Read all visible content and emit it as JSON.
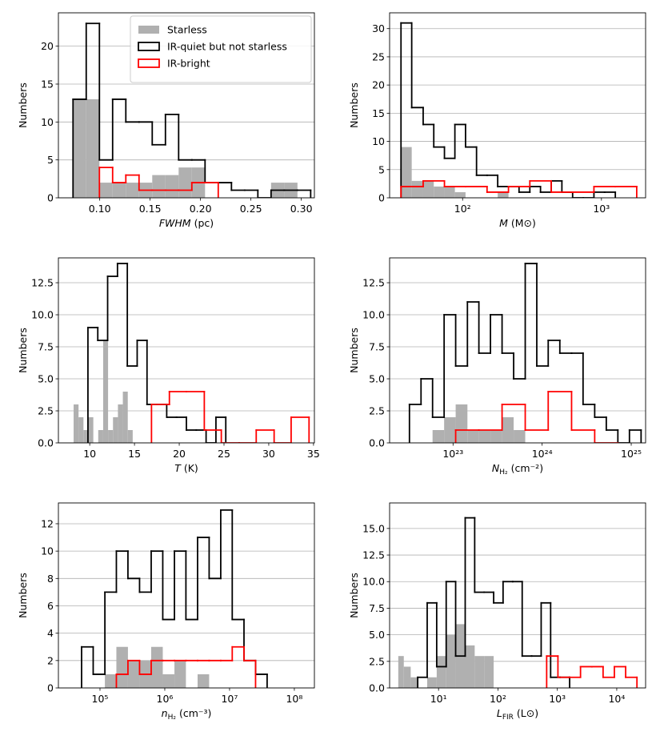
{
  "chart_data": [
    {
      "type": "histogram",
      "xscale": "linear",
      "grid": "y",
      "legend": "upper right",
      "xlabel": {
        "symbol": "FWHM",
        "unit": "(pc)"
      },
      "ylabel": "Numbers",
      "xlim": [
        0.059,
        0.313
      ],
      "ylim": [
        0,
        24.4
      ],
      "xticks": [
        {
          "value": 0.1,
          "label": "0.10"
        },
        0.15,
        {
          "value": 0.2,
          "label": "0.20"
        },
        0.25,
        {
          "value": 0.3,
          "label": "0.30"
        }
      ],
      "yticks": [
        0,
        5,
        10,
        15,
        20
      ],
      "series": [
        {
          "name": "Starless",
          "color": "#b0b0b0",
          "fill": true,
          "bins": [
            0.0735,
            0.0866,
            0.0997,
            0.1128,
            0.1259,
            0.139,
            0.1521,
            0.1652,
            0.1783,
            0.1914,
            0.2045,
            0.2176,
            0.2307,
            0.2438,
            0.2569,
            0.27,
            0.2831,
            0.2962,
            0.3093
          ],
          "values": [
            13,
            13,
            2,
            2,
            2,
            2,
            3,
            3,
            4,
            4,
            0,
            0,
            0,
            0,
            0,
            2,
            2,
            0
          ]
        },
        {
          "name": "IR-quiet but not starless",
          "color": "#000000",
          "fill": false,
          "bins": [
            0.0735,
            0.0866,
            0.0997,
            0.1128,
            0.1259,
            0.139,
            0.1521,
            0.1652,
            0.1783,
            0.1914,
            0.2045,
            0.2176,
            0.2307,
            0.2438,
            0.2569,
            0.27,
            0.2831,
            0.2962,
            0.3093
          ],
          "values": [
            13,
            23,
            5,
            13,
            10,
            10,
            7,
            11,
            5,
            5,
            2,
            2,
            1,
            1,
            0,
            1,
            1,
            1
          ]
        },
        {
          "name": "IR-bright",
          "color": "#ff0000",
          "fill": false,
          "bins": [
            0.0997,
            0.1128,
            0.1259,
            0.139,
            0.1521,
            0.1652,
            0.1783,
            0.1914,
            0.2045,
            0.2176
          ],
          "values": [
            4,
            2,
            3,
            1,
            1,
            1,
            1,
            2,
            2
          ]
        }
      ]
    },
    {
      "type": "histogram",
      "xscale": "log",
      "grid": "y",
      "xlabel": {
        "symbol": "M",
        "unit": "(M⊙)"
      },
      "ylabel": "Numbers",
      "xlim": [
        29.8,
        2080
      ],
      "ylim": [
        0,
        32.8
      ],
      "xticks": [
        {
          "value": 100,
          "label": "10²"
        },
        {
          "value": 1000,
          "label": "10³"
        }
      ],
      "yticks": [
        0,
        5,
        10,
        15,
        20,
        25,
        30
      ],
      "series": [
        {
          "color": "#b0b0b0",
          "fill": true,
          "bins": [
            36,
            43,
            52,
            62,
            74,
            88,
            105,
            126,
            150,
            179,
            214
          ],
          "values": [
            9,
            3,
            3,
            2,
            2,
            1,
            0,
            0,
            0,
            1
          ]
        },
        {
          "color": "#000000",
          "fill": false,
          "bins": [
            36,
            43,
            52,
            62,
            74,
            88,
            105,
            126,
            150,
            179,
            214,
            255,
            305,
            364,
            435,
            519,
            620,
            740,
            883,
            1054,
            1259
          ],
          "values": [
            31,
            16,
            13,
            9,
            7,
            13,
            9,
            4,
            4,
            2,
            2,
            1,
            2,
            1,
            3,
            1,
            0,
            0,
            1,
            1
          ]
        },
        {
          "color": "#ff0000",
          "fill": false,
          "bins": [
            36,
            52,
            74,
            105,
            150,
            214,
            305,
            435,
            620,
            883,
            1259,
            1795
          ],
          "values": [
            2,
            3,
            2,
            2,
            1,
            2,
            3,
            1,
            1,
            2,
            2
          ]
        }
      ]
    },
    {
      "type": "histogram",
      "xscale": "linear",
      "grid": "y",
      "xlabel": {
        "symbol": "T",
        "unit": "(K)"
      },
      "ylabel": "Numbers",
      "xlim": [
        6.5,
        35.1
      ],
      "ylim": [
        0,
        14.44
      ],
      "xticks": [
        10,
        15,
        20,
        25,
        30,
        35
      ],
      "yticks": [
        {
          "value": 0,
          "label": "0.0"
        },
        2.5,
        {
          "value": 5,
          "label": "5.0"
        },
        7.5,
        {
          "value": 10,
          "label": "10.0"
        },
        12.5
      ],
      "series": [
        {
          "color": "#b0b0b0",
          "fill": true,
          "bins": [
            8.2,
            8.75,
            9.3,
            9.85,
            10.4,
            10.95,
            11.5,
            12.05,
            12.6,
            13.15,
            13.7,
            14.25,
            14.8
          ],
          "values": [
            3,
            2,
            1,
            2,
            0,
            1,
            8,
            1,
            2,
            3,
            4,
            1
          ]
        },
        {
          "color": "#000000",
          "fill": false,
          "bins": [
            9.8,
            10.9,
            12.0,
            13.1,
            14.2,
            15.3,
            16.4,
            17.5,
            18.6,
            19.7,
            20.8,
            21.9,
            23.0,
            24.1,
            25.2
          ],
          "values": [
            9,
            8,
            13,
            14,
            6,
            8,
            3,
            3,
            2,
            2,
            1,
            1,
            0,
            2
          ]
        },
        {
          "color": "#ff0000",
          "fill": false,
          "bins": [
            16.9,
            18.9,
            20.8,
            22.8,
            24.7,
            26.7,
            28.6,
            30.6,
            32.5,
            34.5
          ],
          "values": [
            3,
            4,
            4,
            1,
            0,
            0,
            1,
            0,
            2
          ]
        }
      ]
    },
    {
      "type": "histogram",
      "xscale": "log",
      "grid": "y",
      "xlabel": {
        "symbol": "N",
        "subscript": "H₂",
        "unit": "(cm⁻²)"
      },
      "ylabel": "Numbers",
      "xlim": [
        1.94e+22,
        1.45e+25
      ],
      "ylim": [
        0,
        14.44
      ],
      "xticks": [
        {
          "value": 1e+23,
          "label": "10²³"
        },
        {
          "value": 1e+24,
          "label": "10²⁴"
        },
        {
          "value": 1e+25,
          "label": "10²⁵"
        }
      ],
      "yticks": [
        {
          "value": 0,
          "label": "0.0"
        },
        2.5,
        {
          "value": 5,
          "label": "5.0"
        },
        7.5,
        {
          "value": 10,
          "label": "10.0"
        },
        12.5
      ],
      "series": [
        {
          "color": "#b0b0b0",
          "fill": true,
          "bins": [
            5.89e+22,
            7.94e+22,
            1.07e+23,
            1.45e+23,
            1.95e+23,
            2.63e+23,
            3.55e+23,
            4.79e+23,
            6.46e+23
          ],
          "values": [
            1,
            2,
            3,
            1,
            1,
            1,
            2,
            1
          ]
        },
        {
          "color": "#000000",
          "fill": false,
          "bins": [
            3.24e+22,
            4.37e+22,
            5.89e+22,
            7.94e+22,
            1.07e+23,
            1.45e+23,
            1.95e+23,
            2.63e+23,
            3.55e+23,
            4.79e+23,
            6.46e+23,
            8.71e+23,
            1.17e+24,
            1.58e+24,
            2.14e+24,
            2.88e+24,
            3.89e+24,
            5.25e+24,
            7.08e+24,
            9.55e+24,
            1.29e+25
          ],
          "values": [
            3,
            5,
            2,
            10,
            6,
            11,
            7,
            10,
            7,
            5,
            14,
            6,
            8,
            7,
            7,
            3,
            2,
            1,
            0,
            1
          ]
        },
        {
          "color": "#ff0000",
          "fill": false,
          "bins": [
            1.07e+23,
            1.95e+23,
            3.55e+23,
            6.46e+23,
            1.17e+24,
            2.14e+24,
            3.89e+24,
            7.08e+24
          ],
          "values": [
            1,
            1,
            3,
            1,
            4,
            1,
            0
          ]
        }
      ]
    },
    {
      "type": "histogram",
      "xscale": "log",
      "grid": "y",
      "xlabel": {
        "symbol": "n",
        "subscript": "H₂",
        "unit": "(cm⁻³)"
      },
      "ylabel": "Numbers",
      "xlim": [
        22800.0,
        204000000.0
      ],
      "ylim": [
        0,
        13.52
      ],
      "xticks": [
        {
          "value": 100000.0,
          "label": "10⁵"
        },
        {
          "value": 1000000.0,
          "label": "10⁶"
        },
        {
          "value": 10000000.0,
          "label": "10⁷"
        },
        {
          "value": 100000000.0,
          "label": "10⁸"
        }
      ],
      "yticks": [
        0,
        2,
        4,
        6,
        8,
        10,
        12
      ],
      "series": [
        {
          "color": "#b0b0b0",
          "fill": true,
          "bins": [
            119000.0,
            179000.0,
            270000.0,
            408000.0,
            617000.0,
            931000.0,
            1410000.0,
            2120000.0,
            3210000.0,
            4840000.0
          ],
          "values": [
            1,
            3,
            2,
            2,
            3,
            1,
            2,
            0,
            1
          ]
        },
        {
          "color": "#000000",
          "fill": false,
          "bins": [
            52000.0,
            78500.0,
            119000.0,
            179000.0,
            270000.0,
            408000.0,
            617000.0,
            931000.0,
            1410000.0,
            2120000.0,
            3210000.0,
            4840000.0,
            7310000.0,
            11000000.0,
            16700000.0,
            25200000.0,
            38000000.0
          ],
          "values": [
            3,
            1,
            7,
            10,
            8,
            7,
            10,
            5,
            10,
            5,
            11,
            8,
            13,
            5,
            2,
            1
          ]
        },
        {
          "color": "#ff0000",
          "fill": false,
          "bins": [
            179000.0,
            270000.0,
            408000.0,
            617000.0,
            931000.0,
            1410000.0,
            2120000.0,
            3210000.0,
            4840000.0,
            7310000.0,
            11000000.0,
            16700000.0,
            25200000.0
          ],
          "values": [
            1,
            2,
            1,
            2,
            2,
            2,
            2,
            2,
            2,
            2,
            3,
            2
          ]
        }
      ]
    },
    {
      "type": "histogram",
      "xscale": "log",
      "grid": "y",
      "xlabel": {
        "symbol": "L",
        "subscript": "FIR",
        "unit": "(L⊙)"
      },
      "ylabel": "Numbers",
      "xlim": [
        1.5,
        30600
      ],
      "ylim": [
        0,
        17.4
      ],
      "xticks": [
        {
          "value": 10,
          "label": "10¹"
        },
        {
          "value": 100,
          "label": "10²"
        },
        {
          "value": 1000,
          "label": "10³"
        },
        {
          "value": 10000,
          "label": "10⁴"
        }
      ],
      "yticks": [
        {
          "value": 0,
          "label": "0.0"
        },
        2.5,
        {
          "value": 5,
          "label": "5.0"
        },
        7.5,
        {
          "value": 10,
          "label": "10.0"
        },
        12.5,
        {
          "value": 15,
          "label": "15.0"
        }
      ],
      "series": [
        {
          "color": "#b0b0b0",
          "fill": true,
          "bins": [
            2.1,
            2.6,
            3.4,
            4.46,
            6.44,
            9.31,
            13.45,
            19.4,
            28.1,
            40.6,
            58.6,
            84.7
          ],
          "values": [
            3,
            2,
            1,
            0,
            1,
            3,
            5,
            6,
            4,
            3,
            3
          ]
        },
        {
          "color": "#000000",
          "fill": false,
          "bins": [
            4.46,
            6.44,
            9.31,
            13.45,
            19.4,
            28.1,
            40.6,
            58.6,
            84.7,
            122,
            177,
            256,
            369,
            534,
            771,
            1114,
            1610
          ],
          "values": [
            1,
            8,
            2,
            10,
            3,
            16,
            9,
            9,
            8,
            10,
            10,
            3,
            3,
            8,
            1,
            1
          ]
        },
        {
          "color": "#ff0000",
          "fill": false,
          "bins": [
            661,
            1023,
            1585,
            2455,
            3802,
            5888,
            9120,
            14125,
            21878
          ],
          "values": [
            3,
            1,
            1,
            2,
            2,
            1,
            2,
            1
          ]
        }
      ]
    }
  ]
}
